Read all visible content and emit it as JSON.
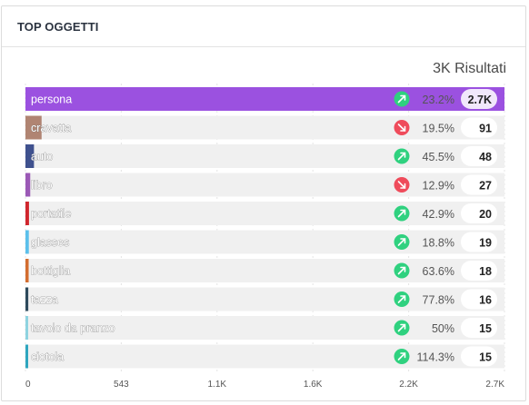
{
  "panel": {
    "title": "TOP OGGETTI",
    "results_label": "3K Risultati"
  },
  "colors": {
    "up": "#2fd17f",
    "down": "#ef4b5b",
    "track": "#f0f0f0"
  },
  "chart_data": {
    "type": "bar",
    "orientation": "horizontal",
    "title": "TOP OGGETTI",
    "xlim": [
      0,
      2700
    ],
    "x_ticks": [
      "0",
      "543",
      "1.1K",
      "1.6K",
      "2.2K",
      "2.7K"
    ],
    "x_tick_values": [
      0,
      543,
      1086,
      1629,
      2172,
      2715
    ],
    "grid": true,
    "categories": [
      "persona",
      "cravatta",
      "auto",
      "libro",
      "portatile",
      "glasses",
      "bottiglia",
      "tazza",
      "tavolo da pranzo",
      "ciotola"
    ],
    "values": [
      2700,
      91,
      48,
      27,
      20,
      19,
      18,
      16,
      15,
      15
    ],
    "value_labels": [
      "2.7K",
      "91",
      "48",
      "27",
      "20",
      "19",
      "18",
      "16",
      "15",
      "15"
    ],
    "change_labels": [
      "23.2%",
      "19.5%",
      "45.5%",
      "12.9%",
      "42.9%",
      "18.8%",
      "63.6%",
      "77.8%",
      "50%",
      "114.3%"
    ],
    "trend": [
      "up",
      "down",
      "up",
      "down",
      "up",
      "up",
      "up",
      "up",
      "up",
      "up"
    ],
    "bar_colors": [
      "#9b51e0",
      "#b08472",
      "#3f518e",
      "#9b59b6",
      "#d0262d",
      "#5bc0eb",
      "#d36d2f",
      "#2d4a5c",
      "#8ed3e0",
      "#2fa6bf"
    ]
  }
}
